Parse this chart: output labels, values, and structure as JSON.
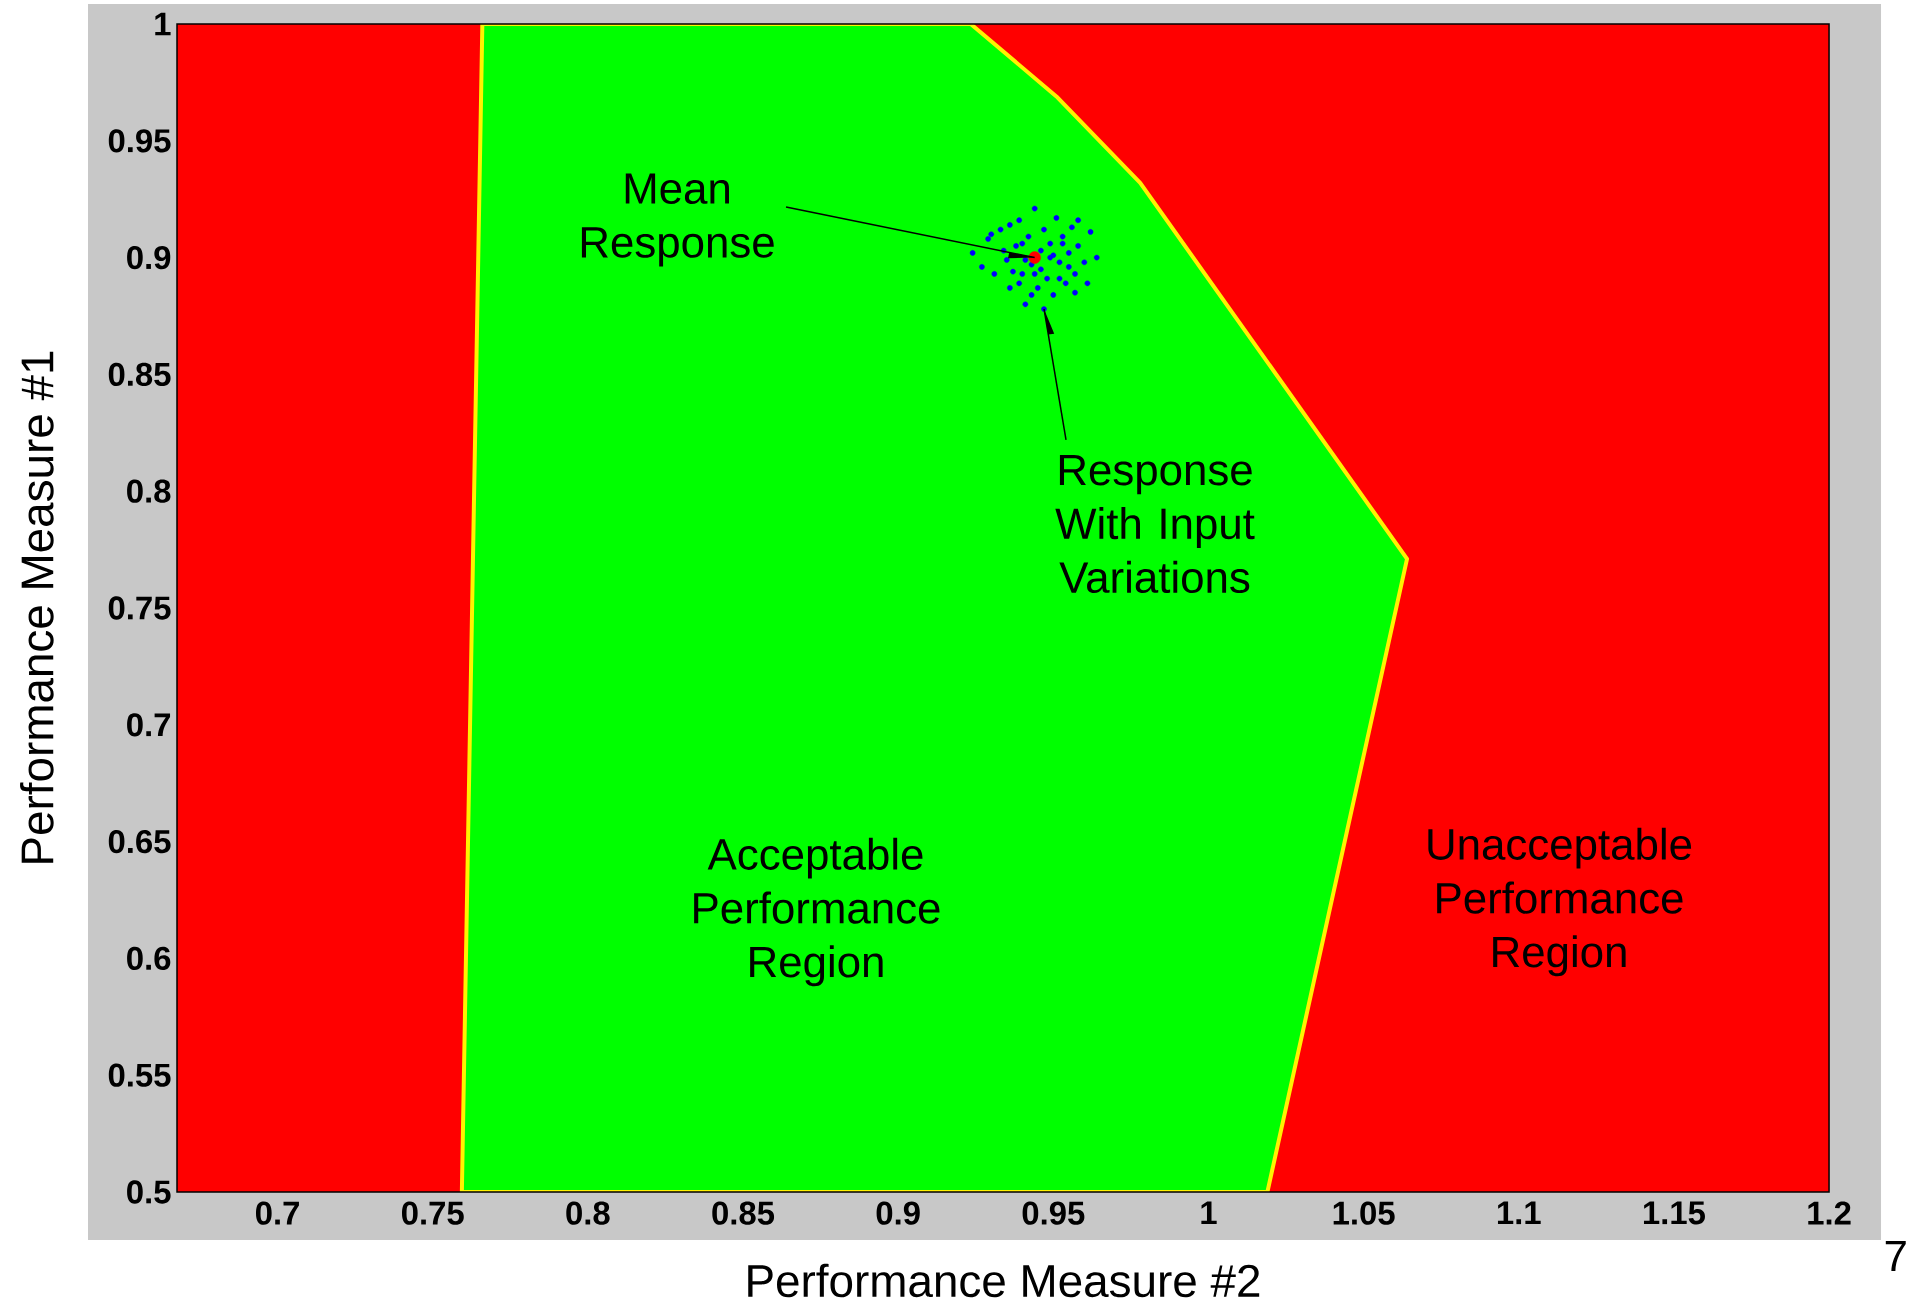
{
  "chart_data": {
    "type": "scatter",
    "xlabel": "Performance Measure #2",
    "ylabel": "Performance Measure #1",
    "xlim": [
      0.6676,
      1.2
    ],
    "ylim": [
      0.5,
      1
    ],
    "xticks": [
      0.7,
      0.75,
      0.8,
      0.85,
      0.9,
      0.95,
      1,
      1.05,
      1.1,
      1.15,
      1.2
    ],
    "yticks": [
      0.5,
      0.55,
      0.6,
      0.65,
      0.7,
      0.75,
      0.8,
      0.85,
      0.9,
      0.95,
      1
    ],
    "grid": false,
    "bands": [
      {
        "axis": "x",
        "from": 0.6676,
        "to": 1.2,
        "color": "#ff0000"
      }
    ],
    "series": [
      {
        "type": "area",
        "marker": "none",
        "color": "#00ff00",
        "x": [
          0.7594,
          0.766,
          0.9234,
          0.951,
          0.978,
          1.017,
          1.064,
          1.019
        ],
        "values": [
          0.5,
          1,
          1,
          0.969,
          0.932,
          0.859,
          0.771,
          0.5
        ]
      },
      {
        "marker": "circle",
        "color": "#0000ff",
        "x": [
          0.924,
          0.927,
          0.929,
          0.931,
          0.933,
          0.935,
          0.936,
          0.938,
          0.939,
          0.94,
          0.941,
          0.942,
          0.943,
          0.944,
          0.945,
          0.946,
          0.947,
          0.948,
          0.949,
          0.95,
          0.951,
          0.952,
          0.953,
          0.954,
          0.955,
          0.956,
          0.957,
          0.958,
          0.96,
          0.962,
          0.964,
          0.93,
          0.934,
          0.937,
          0.94,
          0.943,
          0.946,
          0.949,
          0.952,
          0.955,
          0.958,
          0.961,
          0.936,
          0.941,
          0.947,
          0.953,
          0.939,
          0.944,
          0.95,
          0.957
        ],
        "values": [
          0.902,
          0.896,
          0.908,
          0.893,
          0.912,
          0.899,
          0.887,
          0.905,
          0.916,
          0.893,
          0.88,
          0.909,
          0.897,
          0.921,
          0.887,
          0.903,
          0.912,
          0.891,
          0.906,
          0.884,
          0.917,
          0.898,
          0.909,
          0.889,
          0.902,
          0.913,
          0.893,
          0.905,
          0.898,
          0.911,
          0.9,
          0.91,
          0.903,
          0.894,
          0.906,
          0.884,
          0.895,
          0.9,
          0.891,
          0.896,
          0.916,
          0.889,
          0.914,
          0.899,
          0.878,
          0.906,
          0.889,
          0.893,
          0.901,
          0.885
        ]
      },
      {
        "marker": "circle",
        "color": "#ff0000",
        "x": [
          0.944
        ],
        "values": [
          0.9
        ]
      }
    ],
    "annotations": [
      {
        "text": "Mean Response",
        "x": 0.944,
        "y": 0.9
      },
      {
        "text": "Response With Input Variations",
        "x": 0.947,
        "y": 0.878
      },
      "Acceptable Performance Region",
      "Unacceptable Performance Region",
      "7"
    ]
  }
}
